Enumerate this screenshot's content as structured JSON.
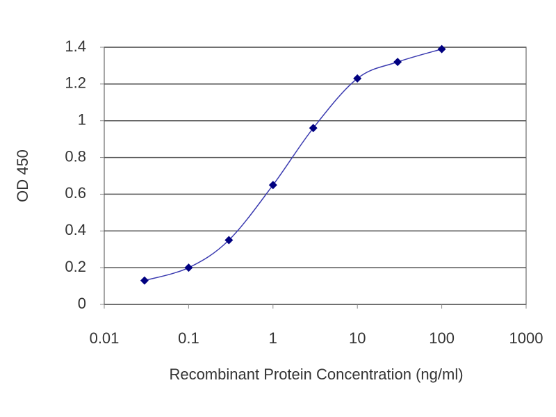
{
  "chart_data": {
    "type": "line",
    "x_label": "Recombinant Protein Concentration (ng/ml)",
    "y_label": "OD 450",
    "x": [
      0.03,
      0.1,
      0.3,
      1,
      3,
      10,
      30,
      100
    ],
    "values": [
      0.13,
      0.2,
      0.35,
      0.65,
      0.96,
      1.23,
      1.32,
      1.39
    ],
    "color": "#000080",
    "line_color": "#3a3ab0",
    "xscale": "log",
    "xlim": [
      0.01,
      1000
    ],
    "xticks": [
      0.01,
      0.1,
      1,
      10,
      100,
      1000
    ],
    "ylim": [
      0,
      1.4
    ],
    "yticks": [
      0,
      0.2,
      0.4,
      0.6,
      0.8,
      1,
      1.2,
      1.4
    ],
    "grid": true
  }
}
